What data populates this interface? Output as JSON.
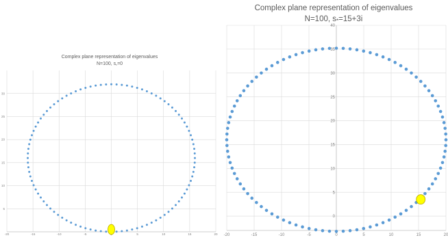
{
  "colors": {
    "points": "#5b9bd5",
    "marker_fill": "#ffff00",
    "marker_stroke": "#b8a800",
    "grid": "#d9d9d9",
    "axis": "#bfbfbf",
    "text": "#595959"
  },
  "chart_data": [
    {
      "type": "scatter",
      "title": "Complex plane representation of eigenvalues",
      "subtitle_pre": "N=100, s",
      "subtitle_sub": "*",
      "subtitle_post": "=0",
      "xlim": [
        -20,
        20
      ],
      "ylim": [
        0,
        35
      ],
      "xticks": [
        -20,
        -15,
        -10,
        -5,
        0,
        5,
        10,
        15,
        20
      ],
      "yticks": [
        5,
        10,
        15,
        20,
        25,
        30
      ],
      "grid": true,
      "legend": "none",
      "eigenvalue_ring": {
        "center": [
          0,
          16
        ],
        "radius_x": 16,
        "radius_y": 16,
        "n_points": 100
      },
      "highlight": {
        "x": 0,
        "y": 0.5
      }
    },
    {
      "type": "scatter",
      "title": "Complex plane representation of eigenvalues",
      "subtitle_pre": "N=100, s",
      "subtitle_sub": "*",
      "subtitle_post": "=15+3i",
      "xlim": [
        -20,
        20
      ],
      "ylim": [
        -3,
        40
      ],
      "xticks": [
        -20,
        -15,
        -10,
        -5,
        0,
        5,
        10,
        15,
        20
      ],
      "yticks": [
        0,
        5,
        10,
        15,
        20,
        25,
        30,
        35,
        40
      ],
      "grid": true,
      "legend": "none",
      "eigenvalue_ring": {
        "center": [
          0,
          16
        ],
        "radius_x": 20,
        "radius_y": 19.2,
        "n_points": 100
      },
      "highlight": {
        "x": 15.4,
        "y": 3.5
      }
    }
  ]
}
